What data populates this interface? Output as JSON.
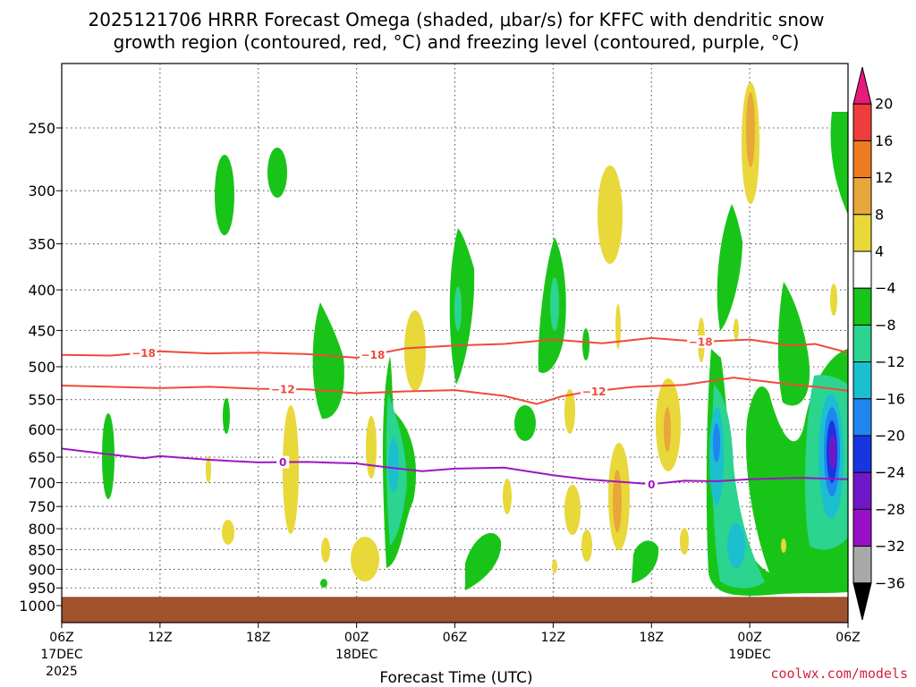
{
  "title": {
    "line1": "2025121706 HRRR Forecast Omega (shaded, μbar/s) for KFFC with dendritic snow",
    "line2": "growth region (contoured, red, °C) and freezing level (contoured, purple, °C)"
  },
  "credit": "coolwx.com/models",
  "chart_data": {
    "type": "time-height cross section",
    "xlabel": "Forecast Time (UTC)",
    "ylabel": "",
    "x_ticks": [
      {
        "hour": 0,
        "label": "06Z",
        "sub": "17DEC",
        "sub2": "2025"
      },
      {
        "hour": 6,
        "label": "12Z",
        "sub": "",
        "sub2": ""
      },
      {
        "hour": 12,
        "label": "18Z",
        "sub": "",
        "sub2": ""
      },
      {
        "hour": 18,
        "label": "00Z",
        "sub": "18DEC",
        "sub2": ""
      },
      {
        "hour": 24,
        "label": "06Z",
        "sub": "",
        "sub2": ""
      },
      {
        "hour": 30,
        "label": "12Z",
        "sub": "",
        "sub2": ""
      },
      {
        "hour": 36,
        "label": "18Z",
        "sub": "",
        "sub2": ""
      },
      {
        "hour": 42,
        "label": "00Z",
        "sub": "19DEC",
        "sub2": ""
      },
      {
        "hour": 48,
        "label": "06Z",
        "sub": "",
        "sub2": ""
      }
    ],
    "xlim": [
      0,
      48
    ],
    "pressure_levels": [
      250,
      300,
      350,
      400,
      450,
      500,
      550,
      600,
      650,
      700,
      750,
      800,
      850,
      900,
      950,
      1000
    ],
    "ylim_hPa": [
      200,
      1010
    ],
    "colorbar": {
      "labels": [
        "20",
        "16",
        "12",
        "8",
        "4",
        "−4",
        "−8",
        "−12",
        "−16",
        "−20",
        "−24",
        "−28",
        "−32",
        "−36"
      ],
      "colors": [
        "#e81a7c",
        "#f03c3c",
        "#f07a22",
        "#e8a73a",
        "#e8d83a",
        "#ffffff",
        "#19c419",
        "#2bd48f",
        "#1bbfcf",
        "#1f86f0",
        "#1836e0",
        "#7018c8",
        "#9a10c8",
        "#a9a9a9",
        "#000000"
      ]
    },
    "contours": [
      {
        "name": "dgz-minus-18",
        "label": "−18",
        "color": "#f04a3a",
        "points": [
          [
            0,
            483
          ],
          [
            3,
            484
          ],
          [
            6,
            478
          ],
          [
            9,
            481
          ],
          [
            12,
            480
          ],
          [
            15,
            482
          ],
          [
            18,
            487
          ],
          [
            21,
            474
          ],
          [
            24,
            470
          ],
          [
            27,
            468
          ],
          [
            30,
            462
          ],
          [
            33,
            467
          ],
          [
            36,
            460
          ],
          [
            39,
            465
          ],
          [
            42,
            462
          ],
          [
            44.5,
            470
          ],
          [
            46,
            468
          ],
          [
            48,
            480
          ]
        ],
        "label_hours": [
          5,
          19,
          39
        ]
      },
      {
        "name": "dgz-minus-12",
        "label": "−12",
        "color": "#f04a3a",
        "points": [
          [
            0,
            528
          ],
          [
            3,
            530
          ],
          [
            6,
            532
          ],
          [
            9,
            530
          ],
          [
            12,
            533
          ],
          [
            15,
            534
          ],
          [
            18,
            540
          ],
          [
            21,
            537
          ],
          [
            24,
            535
          ],
          [
            27,
            544
          ],
          [
            29,
            557
          ],
          [
            30.5,
            545
          ],
          [
            32,
            538
          ],
          [
            35,
            530
          ],
          [
            38,
            527
          ],
          [
            41,
            516
          ],
          [
            44,
            525
          ],
          [
            46,
            530
          ],
          [
            48,
            536
          ]
        ],
        "label_hours": [
          13.5,
          32.5
        ]
      },
      {
        "name": "freezing-level-0",
        "label": "0",
        "color": "#9d16c0",
        "points": [
          [
            0,
            634
          ],
          [
            3,
            645
          ],
          [
            5,
            652
          ],
          [
            6,
            648
          ],
          [
            9,
            655
          ],
          [
            12,
            660
          ],
          [
            15,
            659
          ],
          [
            18,
            662
          ],
          [
            20,
            670
          ],
          [
            22,
            677
          ],
          [
            24,
            672
          ],
          [
            27,
            670
          ],
          [
            30,
            685
          ],
          [
            32,
            693
          ],
          [
            34,
            698
          ],
          [
            36,
            703
          ],
          [
            38,
            696
          ],
          [
            40,
            697
          ],
          [
            42,
            693
          ],
          [
            45,
            690
          ],
          [
            48,
            693
          ]
        ],
        "label_hours": [
          13.5,
          36
        ]
      }
    ],
    "ground_level_hPa": 975
  }
}
